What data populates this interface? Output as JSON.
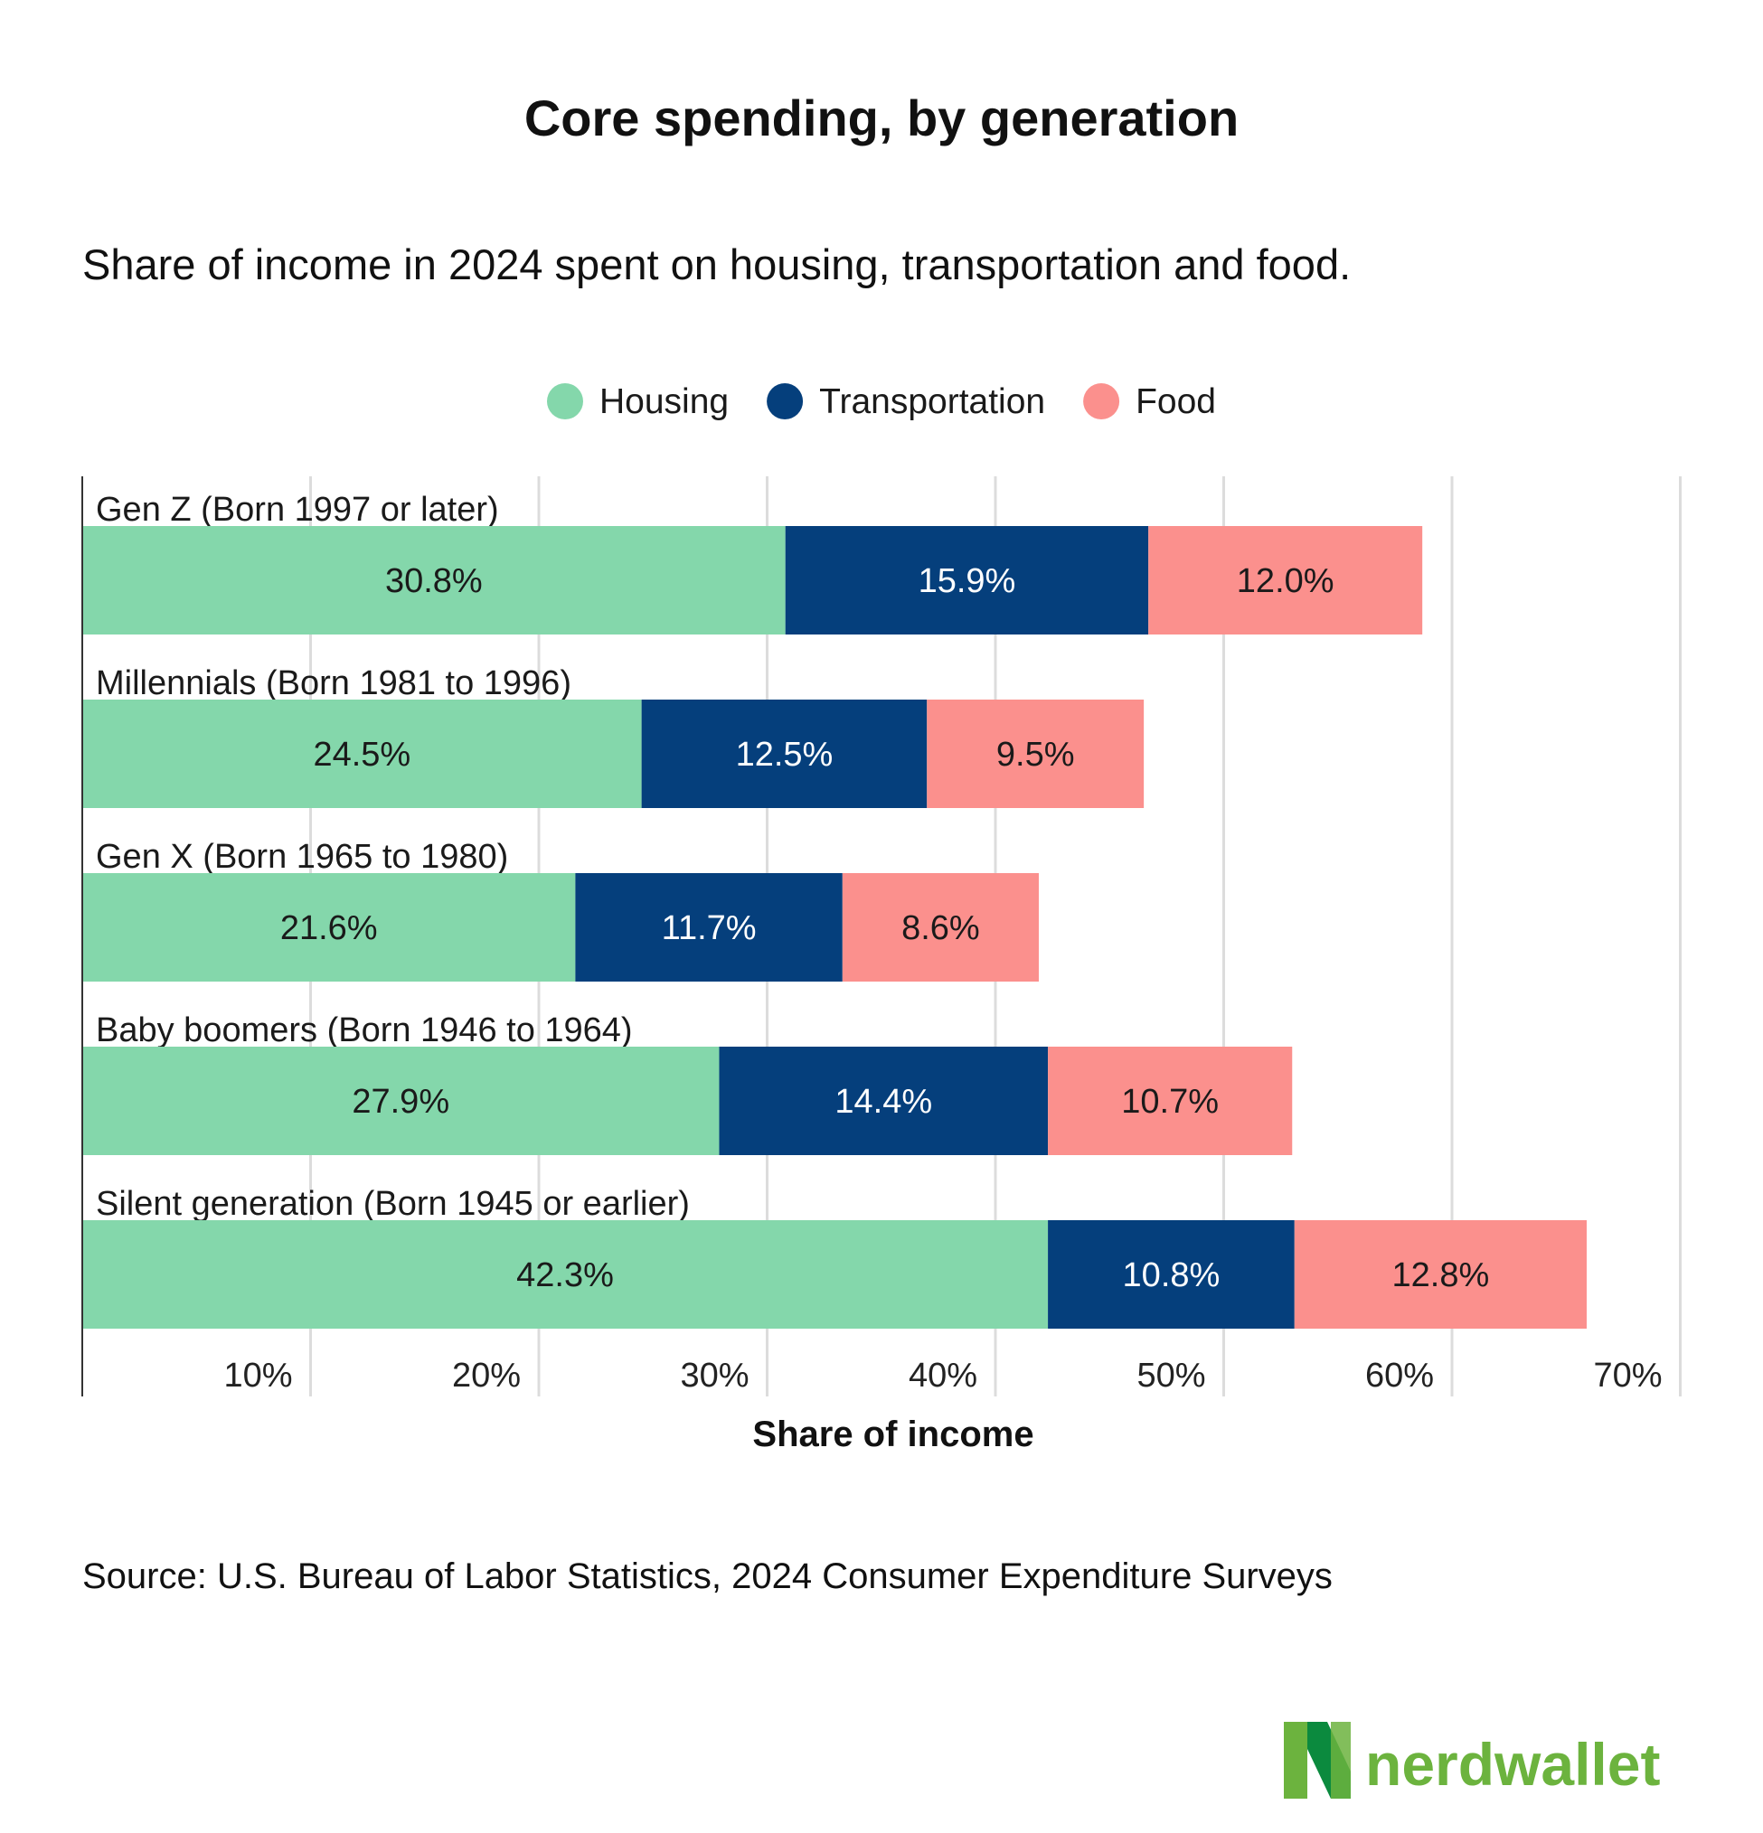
{
  "title": "Core spending, by generation",
  "subtitle": "Share of income in 2024 spent on housing, transportation and food.",
  "source": "Source: U.S. Bureau of Labor Statistics, 2024 Consumer Expenditure Surveys",
  "logo": {
    "text": "nerdwallet",
    "color": "#6cb33e"
  },
  "chart_data": {
    "type": "bar",
    "orientation": "horizontal",
    "stacked": true,
    "title": "Core spending, by generation",
    "subtitle": "Share of income in 2024 spent on housing, transportation and food.",
    "xlabel": "Share of income",
    "ylabel": "",
    "xlim": [
      0,
      70
    ],
    "x_ticks": [
      "10%",
      "20%",
      "30%",
      "40%",
      "50%",
      "60%",
      "70%"
    ],
    "grid": true,
    "legend_position": "top-center",
    "categories": [
      "Gen Z (Born 1997 or later)",
      "Millennials (Born 1981 to 1996)",
      "Gen X (Born 1965 to 1980)",
      "Baby boomers (Born 1946 to 1964)",
      "Silent generation (Born 1945 or earlier)"
    ],
    "series": [
      {
        "name": "Housing",
        "color": "#84d7ab",
        "label_color": "#1a1a1a",
        "values": [
          30.8,
          24.5,
          21.6,
          27.9,
          42.3
        ],
        "labels": [
          "30.8%",
          "24.5%",
          "21.6%",
          "27.9%",
          "42.3%"
        ]
      },
      {
        "name": "Transportation",
        "color": "#053f7c",
        "label_color": "#ffffff",
        "values": [
          15.9,
          12.5,
          11.7,
          14.4,
          10.8
        ],
        "labels": [
          "15.9%",
          "12.5%",
          "11.7%",
          "14.4%",
          "10.8%"
        ]
      },
      {
        "name": "Food",
        "color": "#fb908d",
        "label_color": "#1a1a1a",
        "values": [
          12.0,
          9.5,
          8.6,
          10.7,
          12.8
        ],
        "labels": [
          "12.0%",
          "9.5%",
          "8.6%",
          "10.7%",
          "12.8%"
        ]
      }
    ]
  }
}
